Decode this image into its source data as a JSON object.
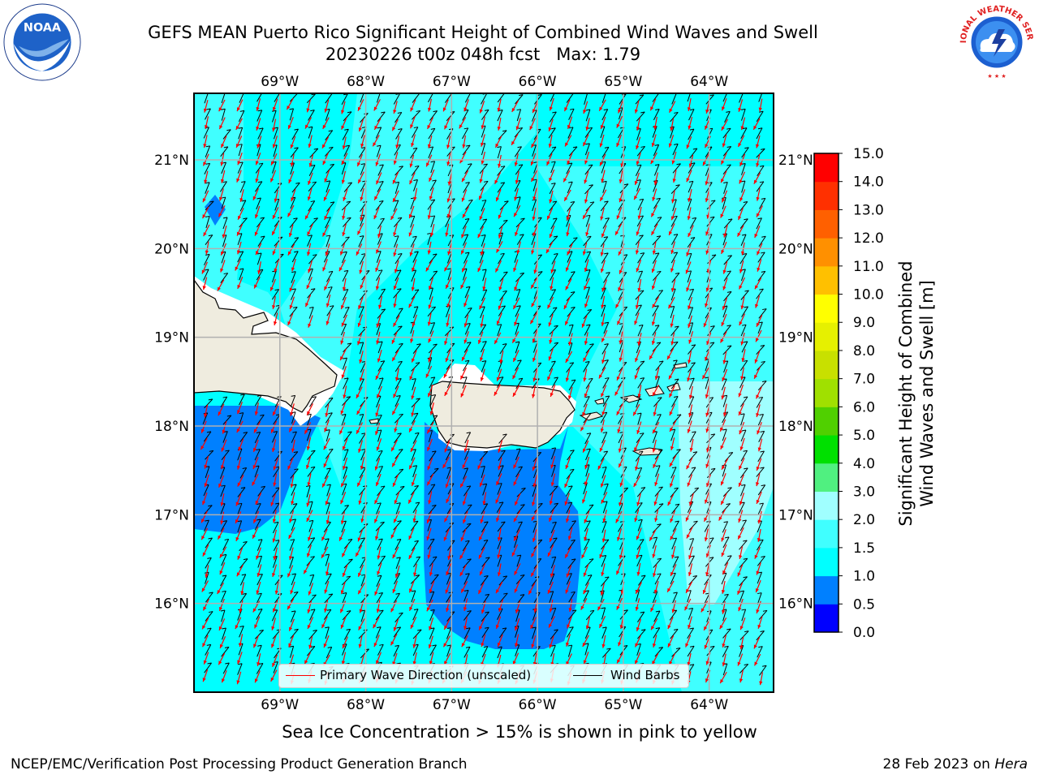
{
  "title": {
    "line1": "GEFS MEAN Puerto Rico Significant Height of Combined Wind Waves and Swell",
    "line2": "20230226 t00z 048h fcst   Max: 1.79"
  },
  "logos": {
    "left": {
      "name": "noaa-logo",
      "text": "NOAA",
      "ring_text": "NATIONAL OCEANIC AND ATMOSPHERIC ADMINISTRATION · U.S. DEPARTMENT OF COMMERCE"
    },
    "right": {
      "name": "nws-logo",
      "ring_text": "NATIONAL WEATHER SERVICE"
    }
  },
  "map": {
    "lon_range": [
      -70,
      -63.25
    ],
    "lat_range": [
      15,
      21.75
    ],
    "lon_ticks": [
      {
        "value": -69,
        "label": "69°W"
      },
      {
        "value": -68,
        "label": "68°W"
      },
      {
        "value": -67,
        "label": "67°W"
      },
      {
        "value": -66,
        "label": "66°W"
      },
      {
        "value": -65,
        "label": "65°W"
      },
      {
        "value": -64,
        "label": "64°W"
      }
    ],
    "lat_ticks": [
      {
        "value": 21,
        "label": "21°N"
      },
      {
        "value": 20,
        "label": "20°N"
      },
      {
        "value": 19,
        "label": "19°N"
      },
      {
        "value": 18,
        "label": "18°N"
      },
      {
        "value": 17,
        "label": "17°N"
      },
      {
        "value": 16,
        "label": "16°N"
      }
    ],
    "grid": true,
    "colors": {
      "land": "#efecdf",
      "sea_1_0_to_1_5": "#00ffff",
      "sea_1_5_to_2_0": "#40ffff",
      "sea_2_0_to_3_0": "#a0ffff",
      "sea_0_5_to_1_0": "#0080ff",
      "wave_arrow": "#ff0000",
      "wind_barb": "#000000"
    }
  },
  "legend": {
    "items": [
      {
        "label": "Primary Wave Direction (unscaled)",
        "color": "#ff0000"
      },
      {
        "label": "Wind Barbs",
        "color": "#000000"
      }
    ]
  },
  "colorbar": {
    "label_line1": "Significant Height of Combined",
    "label_line2": "Wind Waves and Swell [m]",
    "levels": [
      "0.0",
      "0.5",
      "1.0",
      "1.5",
      "2.0",
      "3.0",
      "4.0",
      "5.0",
      "6.0",
      "7.0",
      "8.0",
      "9.0",
      "10.0",
      "11.0",
      "12.0",
      "13.0",
      "14.0",
      "15.0"
    ],
    "colors": [
      "#0000ff",
      "#0080ff",
      "#00ffff",
      "#40ffff",
      "#a0ffff",
      "#50f080",
      "#00e000",
      "#50d000",
      "#a0e000",
      "#c8e000",
      "#e6f000",
      "#ffff00",
      "#ffc000",
      "#ff9000",
      "#ff6000",
      "#ff3000",
      "#ff0000"
    ]
  },
  "footer": {
    "note": "Sea Ice Concentration > 15% is shown in pink to yellow",
    "left": "NCEP/EMC/Verification Post Processing Product Generation Branch",
    "right_date": "28 Feb 2023 on ",
    "right_host": "Hera"
  }
}
